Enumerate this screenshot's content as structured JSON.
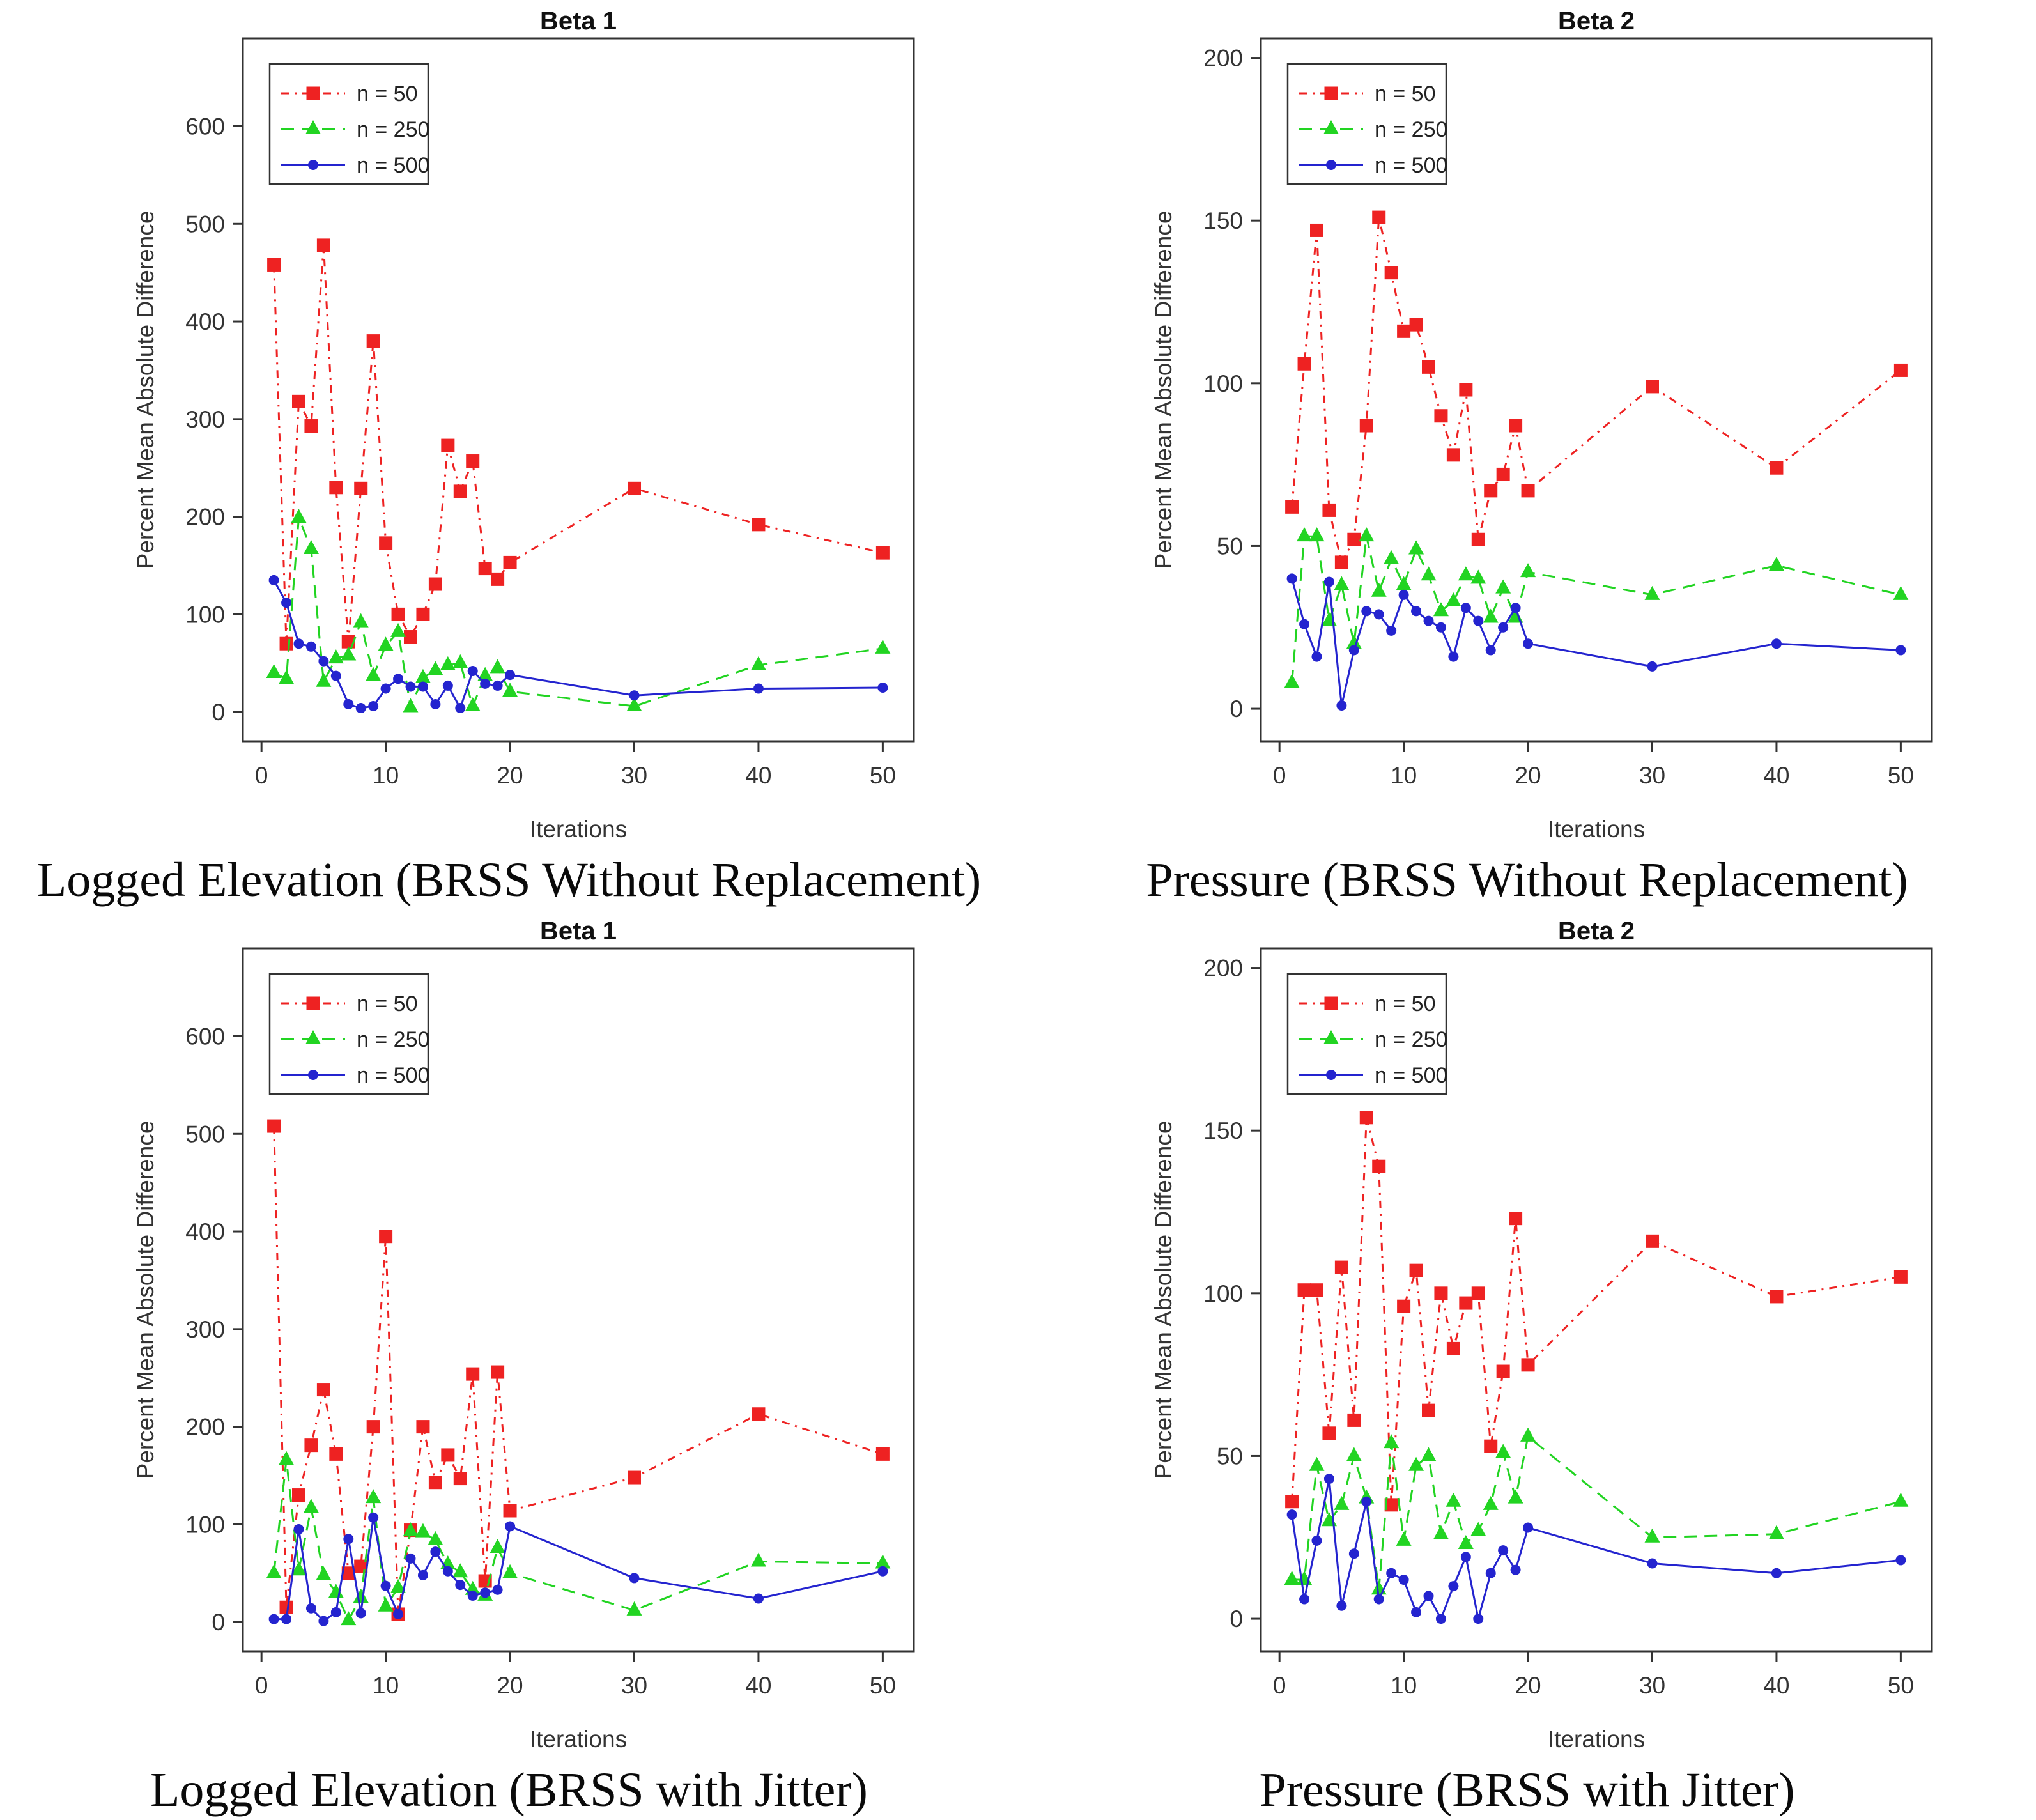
{
  "page": {
    "background": "#ffffff"
  },
  "axis_style": {
    "box_color": "#333333",
    "tick_color": "#333333",
    "tick_label_color": "#333333",
    "title_color": "#111111"
  },
  "series_styles": {
    "n50": {
      "color": "#ee2222",
      "marker": "square",
      "dash": "12 9 3 9"
    },
    "n250": {
      "color": "#22d422",
      "marker": "triangle",
      "dash": "20 12"
    },
    "n500": {
      "color": "#2424cf",
      "marker": "circle",
      "dash": ""
    }
  },
  "chart_data": [
    {
      "type": "line",
      "title": "Beta 1",
      "caption": "Logged Elevation (BRSS Without Replacement)",
      "xlabel": "Iterations",
      "ylabel": "Percent Mean Absolute Difference",
      "xlim": [
        -1.5,
        52.5
      ],
      "ylim": [
        -30,
        690
      ],
      "xticks": [
        0,
        10,
        20,
        30,
        40,
        50
      ],
      "yticks": [
        0,
        100,
        200,
        300,
        400,
        500,
        600
      ],
      "grid": false,
      "legend_position": "top-left",
      "x": [
        1,
        2,
        3,
        4,
        5,
        6,
        7,
        8,
        9,
        10,
        11,
        12,
        13,
        14,
        15,
        16,
        17,
        18,
        19,
        20,
        30,
        40,
        50
      ],
      "series": [
        {
          "name": "n50",
          "label": "n = 50",
          "values": [
            458,
            70,
            318,
            293,
            478,
            230,
            72,
            229,
            380,
            173,
            100,
            77,
            100,
            131,
            273,
            226,
            257,
            147,
            136,
            153,
            229,
            192,
            163
          ]
        },
        {
          "name": "n250",
          "label": "n = 250",
          "values": [
            40,
            34,
            199,
            167,
            31,
            55,
            58,
            92,
            37,
            68,
            82,
            5,
            35,
            43,
            48,
            50,
            6,
            37,
            45,
            21,
            6,
            48,
            65
          ]
        },
        {
          "name": "n500",
          "label": "n = 500",
          "values": [
            135,
            112,
            70,
            67,
            52,
            37,
            8,
            4,
            6,
            24,
            34,
            26,
            26,
            8,
            27,
            4,
            42,
            29,
            27,
            38,
            17,
            24,
            25
          ]
        }
      ]
    },
    {
      "type": "line",
      "title": "Beta 2",
      "caption": "Pressure (BRSS Without Replacement)",
      "xlabel": "Iterations",
      "ylabel": "Percent Mean Absolute Difference",
      "xlim": [
        -1.5,
        52.5
      ],
      "ylim": [
        -10,
        206
      ],
      "xticks": [
        0,
        10,
        20,
        30,
        40,
        50
      ],
      "yticks": [
        0,
        50,
        100,
        150,
        200
      ],
      "grid": false,
      "legend_position": "top-left",
      "x": [
        1,
        2,
        3,
        4,
        5,
        6,
        7,
        8,
        9,
        10,
        11,
        12,
        13,
        14,
        15,
        16,
        17,
        18,
        19,
        20,
        30,
        40,
        50
      ],
      "series": [
        {
          "name": "n50",
          "label": "n = 50",
          "values": [
            62,
            106,
            147,
            61,
            45,
            52,
            87,
            151,
            134,
            116,
            118,
            105,
            90,
            78,
            98,
            52,
            67,
            72,
            87,
            67,
            99,
            74,
            104
          ]
        },
        {
          "name": "n250",
          "label": "n = 250",
          "values": [
            8,
            53,
            53,
            27,
            38,
            20,
            53,
            36,
            46,
            38,
            49,
            41,
            30,
            33,
            41,
            40,
            28,
            37,
            28,
            42,
            35,
            44,
            35
          ]
        },
        {
          "name": "n500",
          "label": "n = 500",
          "values": [
            40,
            26,
            16,
            39,
            1,
            18,
            30,
            29,
            24,
            35,
            30,
            27,
            25,
            16,
            31,
            27,
            18,
            25,
            31,
            20,
            13,
            20,
            18
          ]
        }
      ]
    },
    {
      "type": "line",
      "title": "Beta 1",
      "caption": "Logged Elevation (BRSS with Jitter)",
      "xlabel": "Iterations",
      "ylabel": "Percent Mean Absolute Difference",
      "xlim": [
        -1.5,
        52.5
      ],
      "ylim": [
        -30,
        690
      ],
      "xticks": [
        0,
        10,
        20,
        30,
        40,
        50
      ],
      "yticks": [
        0,
        100,
        200,
        300,
        400,
        500,
        600
      ],
      "grid": false,
      "legend_position": "top-left",
      "x": [
        1,
        2,
        3,
        4,
        5,
        6,
        7,
        8,
        9,
        10,
        11,
        12,
        13,
        14,
        15,
        16,
        17,
        18,
        19,
        20,
        30,
        40,
        50
      ],
      "series": [
        {
          "name": "n50",
          "label": "n = 50",
          "values": [
            508,
            15,
            130,
            181,
            238,
            172,
            50,
            57,
            200,
            395,
            8,
            94,
            200,
            143,
            171,
            147,
            254,
            42,
            256,
            114,
            148,
            213,
            172
          ]
        },
        {
          "name": "n250",
          "label": "n = 250",
          "values": [
            50,
            166,
            53,
            117,
            48,
            30,
            2,
            25,
            127,
            16,
            35,
            93,
            92,
            84,
            59,
            51,
            33,
            27,
            76,
            50,
            12,
            62,
            60
          ]
        },
        {
          "name": "n500",
          "label": "n = 500",
          "values": [
            3,
            3,
            95,
            14,
            1,
            10,
            85,
            9,
            107,
            37,
            8,
            65,
            48,
            72,
            52,
            38,
            27,
            30,
            33,
            98,
            45,
            24,
            52
          ]
        }
      ]
    },
    {
      "type": "line",
      "title": "Beta 2",
      "caption": "Pressure (BRSS with Jitter)",
      "xlabel": "Iterations",
      "ylabel": "Percent Mean Absolute Difference",
      "xlim": [
        -1.5,
        52.5
      ],
      "ylim": [
        -10,
        206
      ],
      "xticks": [
        0,
        10,
        20,
        30,
        40,
        50
      ],
      "yticks": [
        0,
        50,
        100,
        150,
        200
      ],
      "grid": false,
      "legend_position": "top-left",
      "x": [
        1,
        2,
        3,
        4,
        5,
        6,
        7,
        8,
        9,
        10,
        11,
        12,
        13,
        14,
        15,
        16,
        17,
        18,
        19,
        20,
        30,
        40,
        50
      ],
      "series": [
        {
          "name": "n50",
          "label": "n = 50",
          "values": [
            36,
            101,
            101,
            57,
            108,
            61,
            154,
            139,
            35,
            96,
            107,
            64,
            100,
            83,
            97,
            100,
            53,
            76,
            123,
            78,
            116,
            99,
            105
          ]
        },
        {
          "name": "n250",
          "label": "n = 250",
          "values": [
            12,
            12,
            47,
            30,
            35,
            50,
            37,
            9,
            54,
            24,
            47,
            50,
            26,
            36,
            23,
            27,
            35,
            51,
            37,
            56,
            25,
            26,
            36
          ]
        },
        {
          "name": "n500",
          "label": "n = 500",
          "values": [
            32,
            6,
            24,
            43,
            4,
            20,
            36,
            6,
            14,
            12,
            2,
            7,
            0,
            10,
            19,
            0,
            14,
            21,
            15,
            28,
            17,
            14,
            18
          ]
        }
      ]
    }
  ]
}
